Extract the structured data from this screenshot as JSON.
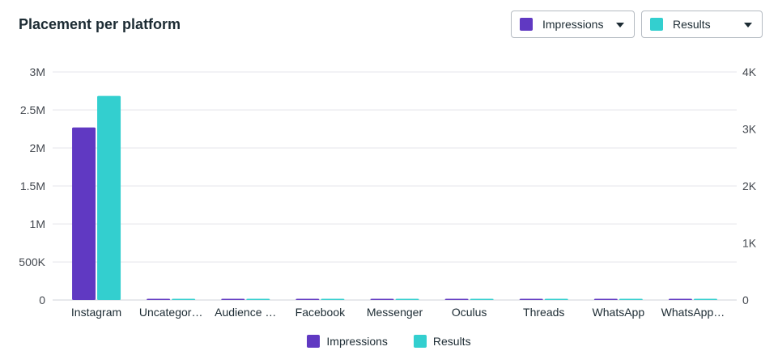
{
  "header": {
    "title": "Placement per platform",
    "dropdown_left": {
      "label": "Impressions",
      "color": "#6039c2",
      "icon": "chevron-down-icon"
    },
    "dropdown_right": {
      "label": "Results",
      "color": "#33cfcf",
      "icon": "chevron-down-icon"
    }
  },
  "chart_data": {
    "type": "bar",
    "title": "Placement per platform",
    "categories": [
      "Instagram",
      "Uncategor…",
      "Audience …",
      "Facebook",
      "Messenger",
      "Oculus",
      "Threads",
      "WhatsApp",
      "WhatsApp…"
    ],
    "series": [
      {
        "name": "Impressions",
        "axis": "left",
        "color": "#6039c2",
        "values": [
          2270000,
          0,
          0,
          0,
          0,
          0,
          0,
          0,
          0
        ]
      },
      {
        "name": "Results",
        "axis": "right",
        "color": "#33cfcf",
        "values": [
          3580,
          0,
          0,
          0,
          0,
          0,
          0,
          0,
          0
        ]
      }
    ],
    "y_left": {
      "lim": [
        0,
        3000000
      ],
      "ticks": [
        0,
        500000,
        1000000,
        1500000,
        2000000,
        2500000,
        3000000
      ],
      "tick_labels": [
        "0",
        "500K",
        "1M",
        "1.5M",
        "2M",
        "2.5M",
        "3M"
      ]
    },
    "y_right": {
      "lim": [
        0,
        4000
      ],
      "ticks": [
        0,
        1000,
        2000,
        3000,
        4000
      ],
      "tick_labels": [
        "0",
        "1K",
        "2K",
        "3K",
        "4K"
      ]
    },
    "grid": true,
    "legend": "bottom-center"
  }
}
